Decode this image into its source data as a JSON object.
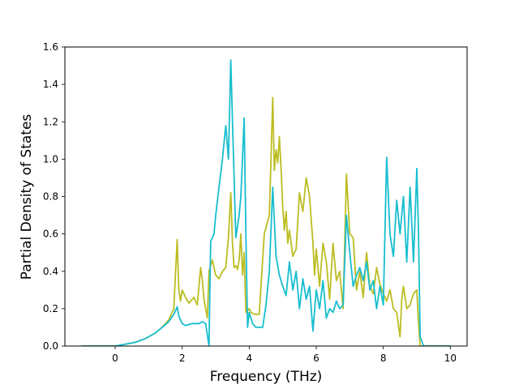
{
  "chart_data": {
    "type": "line",
    "title": "",
    "xlabel": "Frequency (THz)",
    "ylabel": "Partial Density of States",
    "xlim": [
      -1.5,
      10.5
    ],
    "ylim": [
      0.0,
      1.6
    ],
    "xticks": [
      0,
      2,
      4,
      6,
      8,
      10
    ],
    "yticks": [
      0.0,
      0.2,
      0.4,
      0.6,
      0.8,
      1.0,
      1.2,
      1.4,
      1.6
    ],
    "xtick_labels": [
      "0",
      "2",
      "4",
      "6",
      "8",
      "10"
    ],
    "ytick_labels": [
      "0.0",
      "0.2",
      "0.4",
      "0.6",
      "0.8",
      "1.0",
      "1.2",
      "1.4",
      "1.6"
    ],
    "grid": false,
    "legend": "none",
    "series": [
      {
        "color": "#bcbd22",
        "x": [
          -1.0,
          -0.5,
          0.0,
          0.3,
          0.6,
          0.9,
          1.2,
          1.4,
          1.6,
          1.75,
          1.85,
          1.9,
          1.95,
          2.0,
          2.1,
          2.2,
          2.35,
          2.45,
          2.55,
          2.6,
          2.65,
          2.75,
          2.8,
          2.9,
          3.0,
          3.1,
          3.2,
          3.3,
          3.38,
          3.45,
          3.5,
          3.55,
          3.6,
          3.65,
          3.7,
          3.75,
          3.8,
          3.85,
          3.9,
          4.0,
          4.05,
          4.15,
          4.3,
          4.45,
          4.6,
          4.65,
          4.7,
          4.75,
          4.8,
          4.85,
          4.9,
          4.95,
          5.0,
          5.05,
          5.1,
          5.15,
          5.2,
          5.3,
          5.4,
          5.5,
          5.6,
          5.7,
          5.8,
          5.9,
          5.95,
          6.0,
          6.1,
          6.2,
          6.3,
          6.4,
          6.5,
          6.6,
          6.7,
          6.8,
          6.9,
          7.0,
          7.1,
          7.2,
          7.3,
          7.4,
          7.5,
          7.6,
          7.7,
          7.8,
          7.9,
          8.0,
          8.1,
          8.2,
          8.3,
          8.4,
          8.5,
          8.55,
          8.6,
          8.7,
          8.8,
          8.9,
          9.0,
          9.05,
          9.1,
          9.2,
          9.5,
          10.0
        ],
        "values": [
          0.0,
          0.0,
          0.0,
          0.01,
          0.02,
          0.04,
          0.07,
          0.1,
          0.14,
          0.2,
          0.57,
          0.3,
          0.24,
          0.3,
          0.26,
          0.23,
          0.26,
          0.22,
          0.42,
          0.35,
          0.25,
          0.15,
          0.4,
          0.46,
          0.38,
          0.36,
          0.4,
          0.42,
          0.58,
          0.82,
          0.55,
          0.42,
          0.43,
          0.41,
          0.46,
          0.6,
          0.38,
          0.5,
          0.18,
          0.2,
          0.18,
          0.17,
          0.17,
          0.6,
          0.7,
          1.0,
          1.33,
          0.94,
          1.05,
          0.98,
          1.12,
          0.95,
          0.74,
          0.62,
          0.72,
          0.55,
          0.62,
          0.48,
          0.52,
          0.82,
          0.72,
          0.9,
          0.8,
          0.55,
          0.38,
          0.52,
          0.32,
          0.55,
          0.45,
          0.25,
          0.55,
          0.35,
          0.4,
          0.2,
          0.92,
          0.6,
          0.58,
          0.3,
          0.4,
          0.26,
          0.5,
          0.32,
          0.28,
          0.42,
          0.33,
          0.28,
          0.24,
          0.3,
          0.2,
          0.18,
          0.05,
          0.25,
          0.32,
          0.2,
          0.22,
          0.28,
          0.3,
          0.12,
          0.0,
          0.0,
          0.0,
          0.0
        ]
      },
      {
        "color": "#17becf",
        "x": [
          -1.0,
          -0.5,
          0.0,
          0.3,
          0.6,
          0.9,
          1.2,
          1.4,
          1.6,
          1.75,
          1.85,
          1.9,
          2.0,
          2.1,
          2.3,
          2.5,
          2.6,
          2.7,
          2.8,
          2.85,
          2.95,
          3.0,
          3.1,
          3.2,
          3.3,
          3.38,
          3.45,
          3.5,
          3.55,
          3.6,
          3.7,
          3.75,
          3.85,
          3.9,
          3.95,
          4.0,
          4.1,
          4.2,
          4.3,
          4.4,
          4.5,
          4.6,
          4.7,
          4.8,
          4.9,
          5.0,
          5.1,
          5.2,
          5.3,
          5.4,
          5.5,
          5.6,
          5.7,
          5.8,
          5.9,
          6.0,
          6.1,
          6.2,
          6.3,
          6.4,
          6.5,
          6.6,
          6.7,
          6.8,
          6.9,
          7.0,
          7.1,
          7.2,
          7.3,
          7.4,
          7.5,
          7.6,
          7.7,
          7.8,
          7.9,
          8.0,
          8.1,
          8.2,
          8.3,
          8.4,
          8.5,
          8.6,
          8.7,
          8.8,
          8.9,
          9.0,
          9.05,
          9.1,
          9.2,
          9.5,
          10.0
        ],
        "values": [
          0.0,
          0.0,
          0.0,
          0.01,
          0.02,
          0.04,
          0.07,
          0.1,
          0.13,
          0.17,
          0.21,
          0.16,
          0.12,
          0.11,
          0.12,
          0.12,
          0.13,
          0.12,
          0.0,
          0.56,
          0.6,
          0.7,
          0.85,
          1.0,
          1.18,
          1.0,
          1.53,
          1.2,
          0.9,
          0.58,
          0.7,
          0.8,
          1.22,
          0.6,
          0.1,
          0.18,
          0.12,
          0.1,
          0.1,
          0.1,
          0.22,
          0.4,
          0.85,
          0.48,
          0.38,
          0.32,
          0.27,
          0.45,
          0.3,
          0.4,
          0.2,
          0.36,
          0.25,
          0.32,
          0.08,
          0.3,
          0.2,
          0.35,
          0.15,
          0.2,
          0.18,
          0.24,
          0.2,
          0.22,
          0.7,
          0.5,
          0.32,
          0.38,
          0.42,
          0.35,
          0.45,
          0.3,
          0.35,
          0.2,
          0.32,
          0.22,
          1.01,
          0.6,
          0.48,
          0.78,
          0.6,
          0.8,
          0.45,
          0.85,
          0.45,
          0.95,
          0.6,
          0.05,
          0.0,
          0.0,
          0.0
        ]
      }
    ]
  }
}
